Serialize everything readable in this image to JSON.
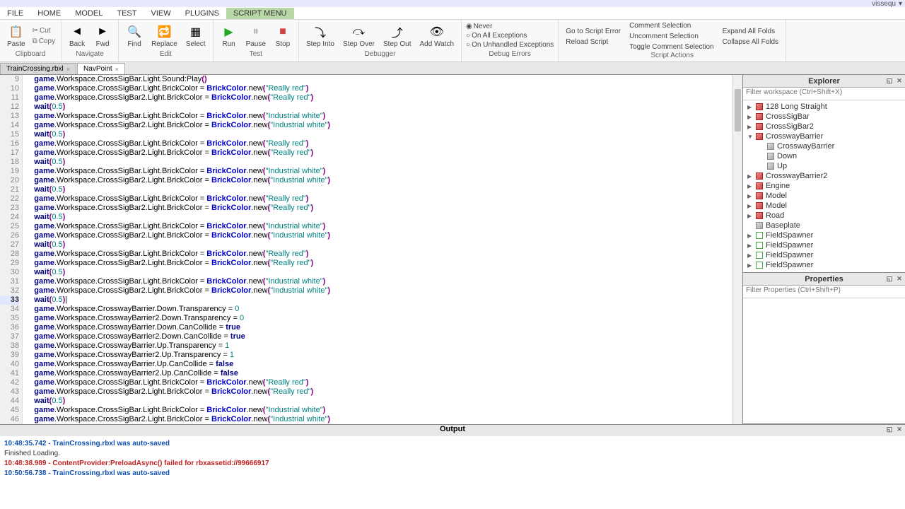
{
  "topbar": {
    "username": "vissequ"
  },
  "menu": {
    "tabs": [
      "FILE",
      "HOME",
      "MODEL",
      "TEST",
      "VIEW",
      "PLUGINS",
      "SCRIPT MENU"
    ],
    "active": 6
  },
  "ribbon": {
    "clipboard": {
      "label": "Clipboard",
      "cut": "Cut",
      "copy": "Copy",
      "paste": "Paste"
    },
    "navigate": {
      "label": "Navigate",
      "back": "Back",
      "fwd": "Fwd"
    },
    "edit": {
      "label": "Edit",
      "find": "Find",
      "replace": "Replace",
      "select": "Select"
    },
    "test": {
      "label": "Test",
      "run": "Run",
      "pause": "Pause",
      "stop": "Stop"
    },
    "debugger": {
      "label": "Debugger",
      "stepInto": "Step Into",
      "stepOver": "Step Over",
      "stepOut": "Step Out",
      "addWatch": "Add Watch"
    },
    "debugErrors": {
      "label": "Debug Errors",
      "options": [
        "Never",
        "On All Exceptions",
        "On Unhandled Exceptions"
      ],
      "selected": 0
    },
    "scriptActions": {
      "label": "Script Actions",
      "goto": "Go to Script Error",
      "reload": "Reload Script",
      "comment": "Comment Selection",
      "uncomment": "Uncomment Selection",
      "toggle": "Toggle Comment Selection",
      "expand": "Expand All Folds",
      "collapse": "Collapse All Folds"
    }
  },
  "fileTabs": {
    "tabs": [
      "TrainCrossing.rbxl",
      "NavPoint"
    ],
    "active": 1
  },
  "code": {
    "firstLine": 9,
    "currentLine": 33,
    "lines": [
      {
        "n": 9,
        "t": "play"
      },
      {
        "n": 10,
        "t": "bc1",
        "c": "Really red"
      },
      {
        "n": 11,
        "t": "bc2",
        "c": "Really red"
      },
      {
        "n": 12,
        "t": "wait"
      },
      {
        "n": 13,
        "t": "bc1",
        "c": "Industrial white"
      },
      {
        "n": 14,
        "t": "bc2",
        "c": "Industrial white"
      },
      {
        "n": 15,
        "t": "wait"
      },
      {
        "n": 16,
        "t": "bc1",
        "c": "Really red"
      },
      {
        "n": 17,
        "t": "bc2",
        "c": "Really red"
      },
      {
        "n": 18,
        "t": "wait"
      },
      {
        "n": 19,
        "t": "bc1",
        "c": "Industrial white"
      },
      {
        "n": 20,
        "t": "bc2",
        "c": "Industrial white"
      },
      {
        "n": 21,
        "t": "wait"
      },
      {
        "n": 22,
        "t": "bc1",
        "c": "Really red"
      },
      {
        "n": 23,
        "t": "bc2",
        "c": "Really red"
      },
      {
        "n": 24,
        "t": "wait"
      },
      {
        "n": 25,
        "t": "bc1",
        "c": "Industrial white"
      },
      {
        "n": 26,
        "t": "bc2",
        "c": "Industrial white"
      },
      {
        "n": 27,
        "t": "wait"
      },
      {
        "n": 28,
        "t": "bc1",
        "c": "Really red"
      },
      {
        "n": 29,
        "t": "bc2",
        "c": "Really red"
      },
      {
        "n": 30,
        "t": "wait"
      },
      {
        "n": 31,
        "t": "bc1",
        "c": "Industrial white"
      },
      {
        "n": 32,
        "t": "bc2",
        "c": "Industrial white"
      },
      {
        "n": 33,
        "t": "waitc"
      },
      {
        "n": 34,
        "t": "trans",
        "p": "CrosswayBarrier.Down",
        "v": "0"
      },
      {
        "n": 35,
        "t": "trans",
        "p": "CrosswayBarrier2.Down",
        "v": "0"
      },
      {
        "n": 36,
        "t": "coll",
        "p": "CrosswayBarrier.Down",
        "v": "true"
      },
      {
        "n": 37,
        "t": "coll",
        "p": "CrosswayBarrier2.Down",
        "v": "true"
      },
      {
        "n": 38,
        "t": "trans",
        "p": "CrosswayBarrier.Up",
        "v": "1"
      },
      {
        "n": 39,
        "t": "trans",
        "p": "CrosswayBarrier2.Up",
        "v": "1"
      },
      {
        "n": 40,
        "t": "coll",
        "p": "CrosswayBarrier.Up",
        "v": "false"
      },
      {
        "n": 41,
        "t": "coll",
        "p": "CrosswayBarrier2.Up",
        "v": "false"
      },
      {
        "n": 42,
        "t": "bc1",
        "c": "Really red"
      },
      {
        "n": 43,
        "t": "bc2",
        "c": "Really red"
      },
      {
        "n": 44,
        "t": "wait"
      },
      {
        "n": 45,
        "t": "bc1",
        "c": "Industrial white"
      },
      {
        "n": 46,
        "t": "bc2",
        "c": "Industrial white"
      }
    ]
  },
  "explorer": {
    "title": "Explorer",
    "filter": "Filter workspace (Ctrl+Shift+X)",
    "items": [
      {
        "indent": 0,
        "arrow": "▶",
        "icon": "cube",
        "label": "128 Long Straight"
      },
      {
        "indent": 0,
        "arrow": "▶",
        "icon": "cube",
        "label": "CrossSigBar"
      },
      {
        "indent": 0,
        "arrow": "▶",
        "icon": "cube",
        "label": "CrossSigBar2"
      },
      {
        "indent": 0,
        "arrow": "▼",
        "icon": "cube",
        "label": "CrosswayBarrier"
      },
      {
        "indent": 1,
        "arrow": "",
        "icon": "part",
        "label": "CrosswayBarrier"
      },
      {
        "indent": 1,
        "arrow": "",
        "icon": "part",
        "label": "Down"
      },
      {
        "indent": 1,
        "arrow": "",
        "icon": "part",
        "label": "Up"
      },
      {
        "indent": 0,
        "arrow": "▶",
        "icon": "cube",
        "label": "CrosswayBarrier2"
      },
      {
        "indent": 0,
        "arrow": "▶",
        "icon": "cube",
        "label": "Engine"
      },
      {
        "indent": 0,
        "arrow": "▶",
        "icon": "cube",
        "label": "Model"
      },
      {
        "indent": 0,
        "arrow": "▶",
        "icon": "cube",
        "label": "Model"
      },
      {
        "indent": 0,
        "arrow": "▶",
        "icon": "cube",
        "label": "Road"
      },
      {
        "indent": 0,
        "arrow": "",
        "icon": "part",
        "label": "Baseplate"
      },
      {
        "indent": 0,
        "arrow": "▶",
        "icon": "script",
        "label": "FieldSpawner"
      },
      {
        "indent": 0,
        "arrow": "▶",
        "icon": "script",
        "label": "FieldSpawner"
      },
      {
        "indent": 0,
        "arrow": "▶",
        "icon": "script",
        "label": "FieldSpawner"
      },
      {
        "indent": 0,
        "arrow": "▶",
        "icon": "script",
        "label": "FieldSpawner"
      }
    ]
  },
  "properties": {
    "title": "Properties",
    "filter": "Filter Properties (Ctrl+Shift+P)"
  },
  "output": {
    "title": "Output",
    "lines": [
      {
        "cls": "out-blue",
        "text": "10:48:35.742 - TrainCrossing.rbxl was auto-saved"
      },
      {
        "cls": "out-normal",
        "text": "Finished Loading."
      },
      {
        "cls": "out-red",
        "text": "10:48:38.989 - ContentProvider:PreloadAsync() failed for rbxassetid://99666917"
      },
      {
        "cls": "out-blue",
        "text": "10:50:56.738 - TrainCrossing.rbxl was auto-saved"
      }
    ]
  }
}
